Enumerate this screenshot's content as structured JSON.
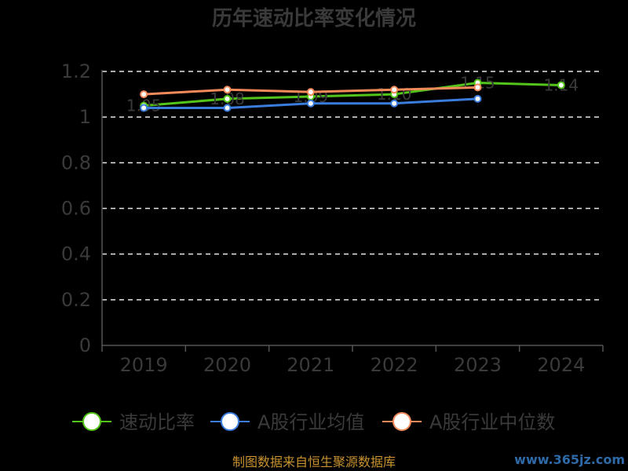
{
  "chart_data": {
    "type": "line",
    "title": "历年速动比率变化情况",
    "categories": [
      "2019",
      "2020",
      "2021",
      "2022",
      "2023",
      "2024"
    ],
    "ylim": [
      0,
      1.2
    ],
    "yticks": [
      "0",
      "0.2",
      "0.4",
      "0.6",
      "0.8",
      "1",
      "1.2"
    ],
    "grid": true,
    "legend_position": "bottom",
    "series": [
      {
        "name": "速动比率",
        "color": "#52c41a",
        "values": [
          1.05,
          1.08,
          1.09,
          1.1,
          1.15,
          1.14
        ],
        "labels": [
          "1.05",
          "1.08",
          "1.09",
          "1.10",
          "1.15",
          "1.14"
        ]
      },
      {
        "name": "A股行业均值",
        "color": "#3b7ddd",
        "values": [
          1.04,
          1.04,
          1.06,
          1.06,
          1.08,
          null
        ]
      },
      {
        "name": "A股行业中位数",
        "color": "#f28a5a",
        "values": [
          1.1,
          1.12,
          1.11,
          1.12,
          1.13,
          null
        ]
      }
    ]
  },
  "footer": {
    "source": "制图数据来自恒生聚源数据库",
    "watermark": "www.365jz.com"
  }
}
